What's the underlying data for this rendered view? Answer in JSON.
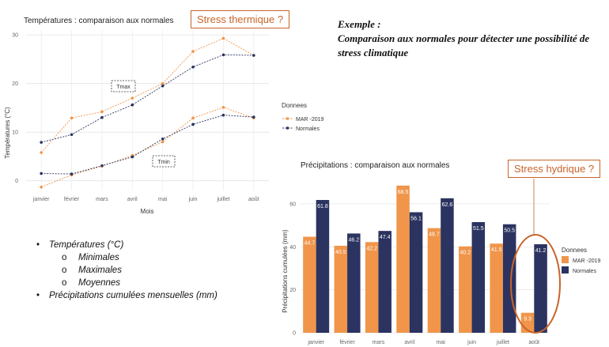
{
  "example": {
    "line1": "Exemple :",
    "line2": "Comparaison aux normales pour détecter une possibilité de stress climatique"
  },
  "callouts": {
    "thermal": "Stress thermique ?",
    "hydric": "Stress hydrique ?"
  },
  "variables_list": {
    "item1": "Températures (°C)",
    "sub1": "Minimales",
    "sub2": "Maximales",
    "sub3": "Moyennes",
    "item2": "Précipitations cumulées mensuelles (mm)",
    "bullet": "•",
    "sub_bullet": "o"
  },
  "colors": {
    "mar2019": "#f0954a",
    "normales": "#2b3360",
    "accent": "#c8642a"
  },
  "chart_data": [
    {
      "type": "line",
      "title": "Températures : comparaison aux normales",
      "xlabel": "Mois",
      "ylabel": "Températures (°C)",
      "categories": [
        "janvier",
        "février",
        "mars",
        "avril",
        "mai",
        "juin",
        "juillet",
        "août"
      ],
      "yticks": [
        0,
        10,
        20,
        30
      ],
      "ylim": [
        -2,
        31
      ],
      "grid": true,
      "legend": {
        "title": "Donnees",
        "placement": "right"
      },
      "annotations": [
        "Tmax",
        "Tmin"
      ],
      "series": [
        {
          "name": "MAR -2019",
          "group": "Tmax",
          "values": [
            5.8,
            12.9,
            14.2,
            17.0,
            20.0,
            26.6,
            29.3,
            25.8
          ]
        },
        {
          "name": "Normales",
          "group": "Tmax",
          "values": [
            7.9,
            9.5,
            13.0,
            15.6,
            19.5,
            23.4,
            25.9,
            25.8
          ]
        },
        {
          "name": "MAR -2019",
          "group": "Tmin",
          "values": [
            -1.3,
            1.2,
            3.0,
            5.2,
            8.0,
            12.9,
            15.1,
            12.9
          ]
        },
        {
          "name": "Normales",
          "group": "Tmin",
          "values": [
            1.5,
            1.4,
            3.1,
            4.9,
            8.6,
            11.6,
            13.5,
            13.1
          ]
        }
      ]
    },
    {
      "type": "bar",
      "title": "Précipitations : comparaison aux normales",
      "xlabel": "",
      "ylabel": "Précipitations cumulées (mm)",
      "categories": [
        "janvier",
        "février",
        "mars",
        "avril",
        "mai",
        "juin",
        "juillet",
        "août"
      ],
      "yticks": [
        0,
        20,
        40,
        60
      ],
      "ylim": [
        0,
        71
      ],
      "grid": true,
      "legend": {
        "title": "Donnees",
        "placement": "right"
      },
      "series": [
        {
          "name": "MAR -2019",
          "values": [
            44.7,
            40.5,
            42.2,
            68.5,
            48.7,
            40.2,
            41.5,
            9.3
          ]
        },
        {
          "name": "Normales",
          "values": [
            61.8,
            46.2,
            47.4,
            56.1,
            62.6,
            51.5,
            50.5,
            41.2
          ]
        }
      ]
    }
  ]
}
